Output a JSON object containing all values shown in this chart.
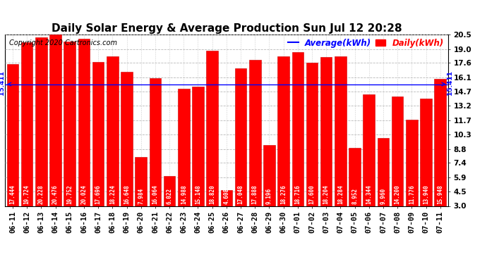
{
  "title": "Daily Solar Energy & Average Production Sun Jul 12 20:28",
  "copyright": "Copyright 2020 Cartronics.com",
  "legend_average": "Average(kWh)",
  "legend_daily": "Daily(kWh)",
  "average_value": 15.411,
  "categories": [
    "06-11",
    "06-12",
    "06-13",
    "06-14",
    "06-15",
    "06-16",
    "06-17",
    "06-18",
    "06-19",
    "06-20",
    "06-21",
    "06-22",
    "06-23",
    "06-24",
    "06-25",
    "06-26",
    "06-27",
    "06-28",
    "06-29",
    "06-30",
    "07-01",
    "07-02",
    "07-03",
    "07-04",
    "07-05",
    "07-06",
    "07-07",
    "07-08",
    "07-09",
    "07-10",
    "07-11"
  ],
  "values": [
    17.444,
    19.724,
    20.228,
    20.476,
    19.752,
    20.024,
    17.696,
    18.224,
    16.648,
    7.984,
    16.064,
    6.022,
    14.988,
    15.148,
    18.82,
    4.608,
    17.048,
    17.888,
    9.196,
    18.276,
    18.716,
    17.6,
    18.204,
    18.284,
    8.952,
    14.344,
    9.96,
    14.2,
    11.776,
    13.94,
    15.948
  ],
  "bar_color": "#ff0000",
  "bar_edge_color": "#cc0000",
  "background_color": "#ffffff",
  "plot_bg_color": "#ffffff",
  "grid_color": "#b0b0b0",
  "average_line_color": "#0000ff",
  "average_label_color": "#0000ff",
  "title_color": "#000000",
  "copyright_color": "#000000",
  "value_text_color": "#ffffff",
  "yticks": [
    3.0,
    4.5,
    5.9,
    7.4,
    8.8,
    10.3,
    11.7,
    13.2,
    14.7,
    16.1,
    17.6,
    19.0,
    20.5
  ],
  "ylim": [
    3.0,
    20.5
  ],
  "title_fontsize": 11,
  "copyright_fontsize": 7,
  "axis_label_fontsize": 7.5,
  "bar_value_fontsize": 5.5,
  "legend_fontsize": 8.5,
  "avg_label_fontsize": 6.5
}
